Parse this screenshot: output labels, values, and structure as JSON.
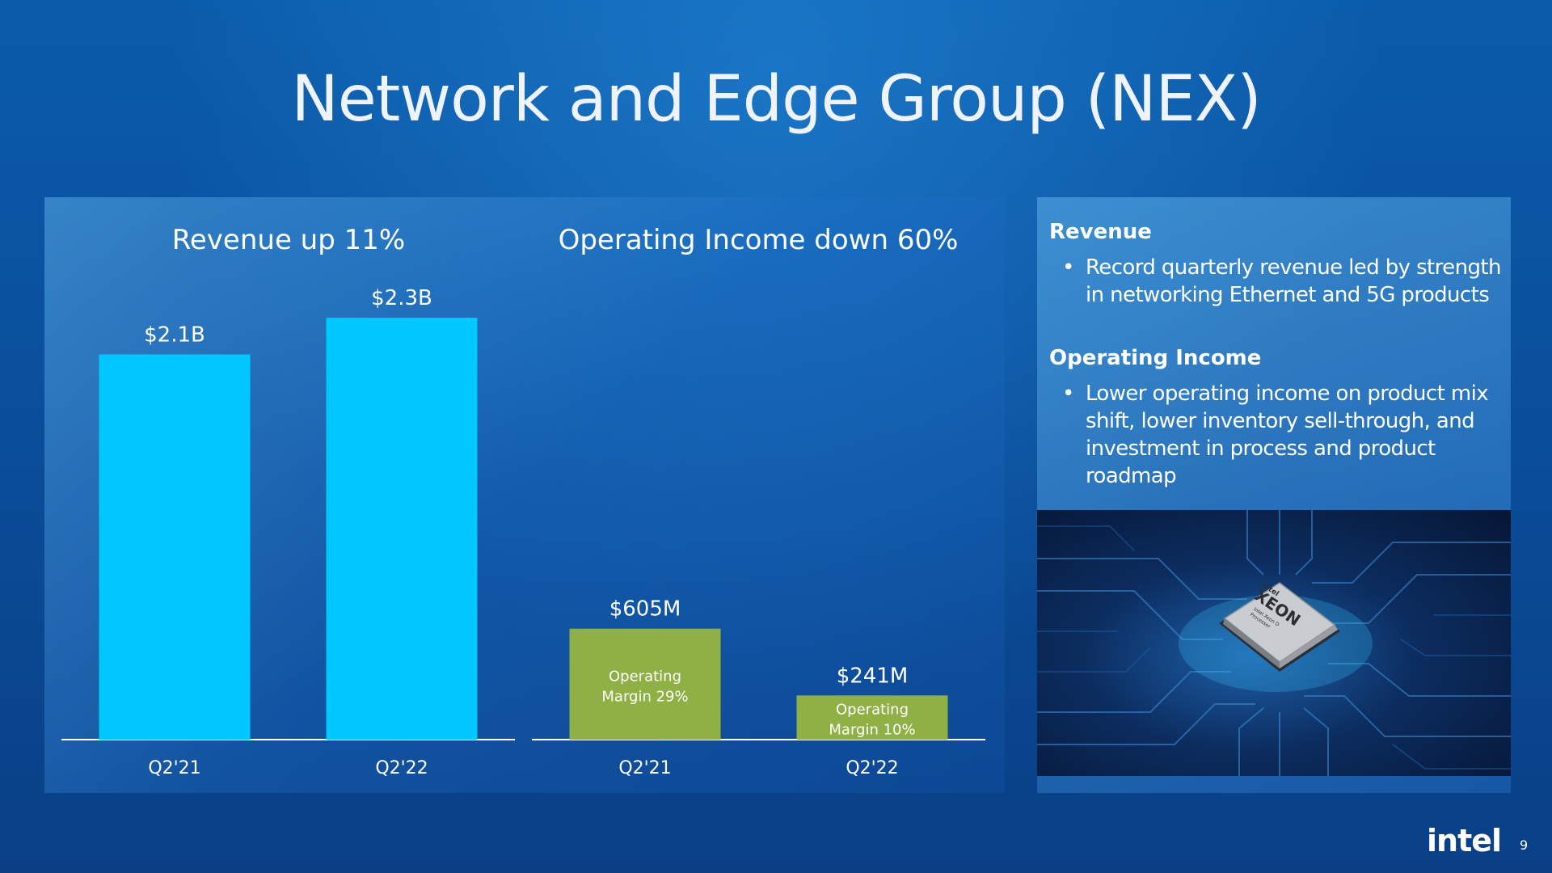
{
  "slide": {
    "title": "Network and Edge Group (NEX)",
    "page_number": "9",
    "logo": "intel"
  },
  "chart_data": [
    {
      "type": "bar",
      "title": "Revenue up 11%",
      "categories": [
        "Q2'21",
        "Q2'22"
      ],
      "values": [
        2.1,
        2.3
      ],
      "value_labels": [
        "$2.1B",
        "$2.3B"
      ],
      "color": "#00c7fd",
      "ylim": [
        0,
        2.6
      ]
    },
    {
      "type": "bar",
      "title": "Operating Income down 60%",
      "categories": [
        "Q2'21",
        "Q2'22"
      ],
      "values": [
        605,
        241
      ],
      "value_labels": [
        "$605M",
        "$241M"
      ],
      "annotations": [
        "Operating Margin 29%",
        "Operating Margin 10%"
      ],
      "color": "#8fb045",
      "ylim": [
        0,
        2600
      ]
    }
  ],
  "side_panel": {
    "sections": [
      {
        "heading": "Revenue",
        "bullet": "Record quarterly revenue led by strength in networking Ethernet and 5G products"
      },
      {
        "heading": "Operating Income",
        "bullet": "Lower operating income on product mix shift, lower inventory sell-through, and investment in process and product roadmap"
      }
    ],
    "photo": {
      "chip_lines": [
        "intel",
        "XEON",
        "Intel Xeon D",
        "Processor"
      ]
    }
  },
  "colors": {
    "revenue_bar": "#00c7fd",
    "income_bar": "#8fb045",
    "background": "#0a4f9c"
  }
}
